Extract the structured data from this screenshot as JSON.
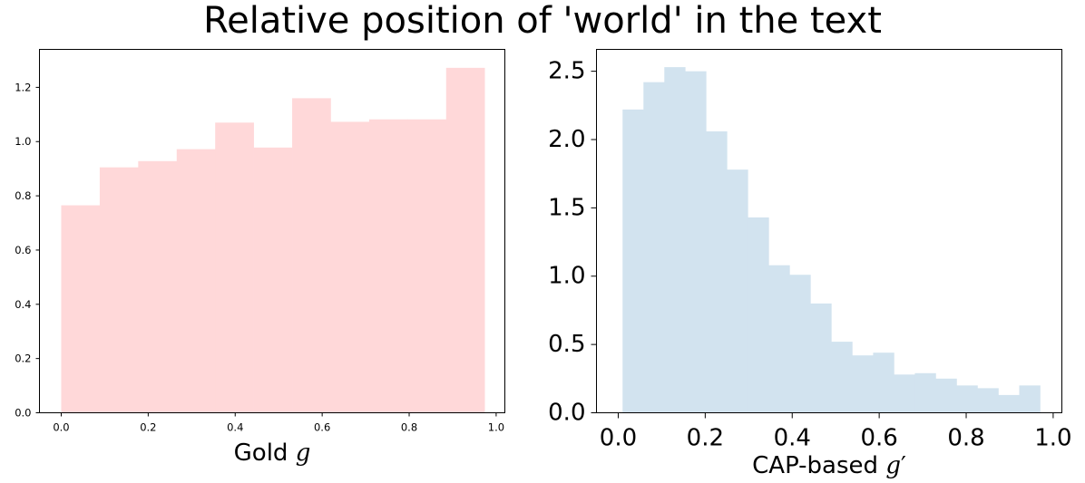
{
  "figure": {
    "title": "Relative position of 'world' in the text"
  },
  "chart_data": [
    {
      "type": "histogram",
      "xlabel_text": "Gold ",
      "xlabel_var": "g",
      "xlabel_prime": "",
      "color": "#ffd8d9",
      "xlim": [
        -0.05,
        1.02
      ],
      "ylim": [
        0,
        1.34
      ],
      "xticks": [
        0.0,
        0.2,
        0.4,
        0.6,
        0.8,
        1.0
      ],
      "xtick_labels": [
        "0.0",
        "0.2",
        "0.4",
        "0.6",
        "0.8",
        "1.0"
      ],
      "yticks": [
        0.0,
        0.2,
        0.4,
        0.6,
        0.8,
        1.0,
        1.2
      ],
      "ytick_labels": [
        "0.0",
        "0.2",
        "0.4",
        "0.6",
        "0.8",
        "1.0",
        "1.2"
      ],
      "bin_edges": [
        0.0,
        0.0885,
        0.177,
        0.2655,
        0.354,
        0.4425,
        0.531,
        0.6195,
        0.708,
        0.7965,
        0.885,
        0.9735
      ],
      "values": [
        0.765,
        0.905,
        0.928,
        0.972,
        1.07,
        0.978,
        1.16,
        1.073,
        1.082,
        1.082,
        1.272
      ]
    },
    {
      "type": "histogram",
      "xlabel_text": "CAP-based ",
      "xlabel_var": "g",
      "xlabel_prime": "′",
      "color": "#d2e3ef",
      "xlim": [
        -0.05,
        1.02
      ],
      "ylim": [
        0,
        2.66
      ],
      "xticks": [
        0.0,
        0.2,
        0.4,
        0.6,
        0.8,
        1.0
      ],
      "xtick_labels": [
        "0.0",
        "0.2",
        "0.4",
        "0.6",
        "0.8",
        "1.0"
      ],
      "yticks": [
        0.0,
        0.5,
        1.0,
        1.5,
        2.0,
        2.5
      ],
      "ytick_labels": [
        "0.0",
        "0.5",
        "1.0",
        "1.5",
        "2.0",
        "2.5"
      ],
      "bin_edges": [
        0.01,
        0.058,
        0.106,
        0.154,
        0.202,
        0.25,
        0.298,
        0.346,
        0.394,
        0.442,
        0.49,
        0.538,
        0.586,
        0.634,
        0.682,
        0.73,
        0.778,
        0.826,
        0.874,
        0.922,
        0.97
      ],
      "values": [
        2.22,
        2.42,
        2.53,
        2.5,
        2.06,
        1.78,
        1.43,
        1.08,
        1.01,
        0.8,
        0.52,
        0.42,
        0.44,
        0.28,
        0.29,
        0.25,
        0.2,
        0.18,
        0.13,
        0.2
      ]
    }
  ]
}
